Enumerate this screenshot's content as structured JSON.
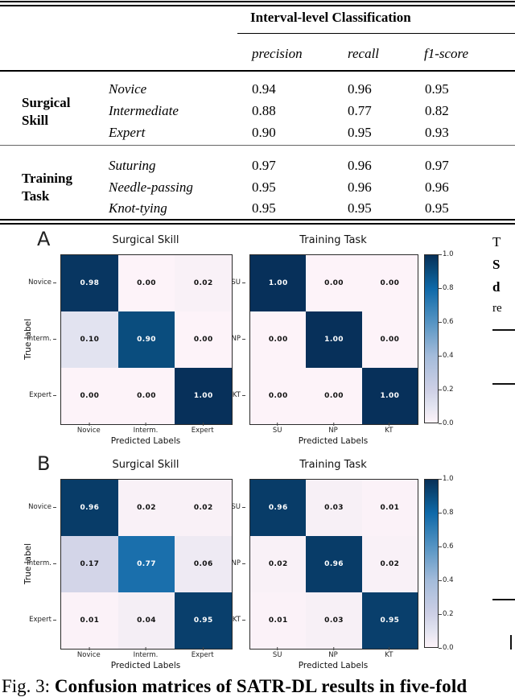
{
  "table": {
    "group_header": "Interval-level Classification",
    "col_headers": [
      "precision",
      "recall",
      "f1-score"
    ],
    "groups": [
      {
        "label": "Surgical Skill",
        "rows": [
          {
            "name": "Novice",
            "values": [
              "0.94",
              "0.96",
              "0.95"
            ]
          },
          {
            "name": "Intermediate",
            "values": [
              "0.88",
              "0.77",
              "0.82"
            ]
          },
          {
            "name": "Expert",
            "values": [
              "0.90",
              "0.95",
              "0.93"
            ]
          }
        ]
      },
      {
        "label": "Training Task",
        "rows": [
          {
            "name": "Suturing",
            "values": [
              "0.97",
              "0.96",
              "0.97"
            ]
          },
          {
            "name": "Needle-passing",
            "values": [
              "0.95",
              "0.96",
              "0.96"
            ]
          },
          {
            "name": "Knot-tying",
            "values": [
              "0.95",
              "0.95",
              "0.95"
            ]
          }
        ]
      }
    ]
  },
  "figure": {
    "colorbar_ticks": [
      "1.0",
      "0.8",
      "0.6",
      "0.4",
      "0.2",
      "0.0"
    ],
    "colors": {
      "cmap_max": "#073058",
      "cmap_min": "#fdf3f9"
    },
    "panels": [
      {
        "label": "A",
        "matrices": [
          {
            "title": "Surgical Skill",
            "xlabel": "Predicted Labels",
            "ylabel": "True label",
            "xticks": [
              "Novice",
              "Interm.",
              "Expert"
            ],
            "yticks": [
              "Novice",
              "Interm.",
              "Expert"
            ],
            "cells": [
              [
                "0.98",
                "0.00",
                "0.02"
              ],
              [
                "0.10",
                "0.90",
                "0.00"
              ],
              [
                "0.00",
                "0.00",
                "1.00"
              ]
            ]
          },
          {
            "title": "Training Task",
            "xlabel": "Predicted Labels",
            "xticks": [
              "SU",
              "NP",
              "KT"
            ],
            "yticks": [
              "SU",
              "NP",
              "KT"
            ],
            "cells": [
              [
                "1.00",
                "0.00",
                "0.00"
              ],
              [
                "0.00",
                "1.00",
                "0.00"
              ],
              [
                "0.00",
                "0.00",
                "1.00"
              ]
            ]
          }
        ]
      },
      {
        "label": "B",
        "matrices": [
          {
            "title": "Surgical Skill",
            "xlabel": "Predicted Labels",
            "ylabel": "True label",
            "xticks": [
              "Novice",
              "Interm.",
              "Expert"
            ],
            "yticks": [
              "Novice",
              "Interm.",
              "Expert"
            ],
            "cells": [
              [
                "0.96",
                "0.02",
                "0.02"
              ],
              [
                "0.17",
                "0.77",
                "0.06"
              ],
              [
                "0.01",
                "0.04",
                "0.95"
              ]
            ]
          },
          {
            "title": "Training Task",
            "xlabel": "Predicted Labels",
            "xticks": [
              "SU",
              "NP",
              "KT"
            ],
            "yticks": [
              "SU",
              "NP",
              "KT"
            ],
            "cells": [
              [
                "0.96",
                "0.03",
                "0.01"
              ],
              [
                "0.02",
                "0.96",
                "0.02"
              ],
              [
                "0.01",
                "0.03",
                "0.95"
              ]
            ]
          }
        ]
      }
    ]
  },
  "side_column": {
    "fragments": [
      "T",
      "S",
      "d",
      "re"
    ]
  },
  "caption": {
    "prefix": "Fig. 3: ",
    "bold": "Confusion matrices of SATR-DL results in five-fold"
  },
  "chart_data": [
    {
      "type": "heatmap",
      "panel": "A",
      "title": "Surgical Skill",
      "xlabel": "Predicted Labels",
      "ylabel": "True label",
      "x": [
        "Novice",
        "Interm.",
        "Expert"
      ],
      "y": [
        "Novice",
        "Interm.",
        "Expert"
      ],
      "values": [
        [
          0.98,
          0.0,
          0.02
        ],
        [
          0.1,
          0.9,
          0.0
        ],
        [
          0.0,
          0.0,
          1.0
        ]
      ],
      "vmin": 0.0,
      "vmax": 1.0,
      "colorbar_ticks": [
        1.0,
        0.8,
        0.6,
        0.4,
        0.2,
        0.0
      ]
    },
    {
      "type": "heatmap",
      "panel": "A",
      "title": "Training Task",
      "xlabel": "Predicted Labels",
      "x": [
        "SU",
        "NP",
        "KT"
      ],
      "y": [
        "SU",
        "NP",
        "KT"
      ],
      "values": [
        [
          1.0,
          0.0,
          0.0
        ],
        [
          0.0,
          1.0,
          0.0
        ],
        [
          0.0,
          0.0,
          1.0
        ]
      ],
      "vmin": 0.0,
      "vmax": 1.0,
      "colorbar_ticks": [
        1.0,
        0.8,
        0.6,
        0.4,
        0.2,
        0.0
      ]
    },
    {
      "type": "heatmap",
      "panel": "B",
      "title": "Surgical Skill",
      "xlabel": "Predicted Labels",
      "ylabel": "True label",
      "x": [
        "Novice",
        "Interm.",
        "Expert"
      ],
      "y": [
        "Novice",
        "Interm.",
        "Expert"
      ],
      "values": [
        [
          0.96,
          0.02,
          0.02
        ],
        [
          0.17,
          0.77,
          0.06
        ],
        [
          0.01,
          0.04,
          0.95
        ]
      ],
      "vmin": 0.0,
      "vmax": 1.0,
      "colorbar_ticks": [
        1.0,
        0.8,
        0.6,
        0.4,
        0.2,
        0.0
      ]
    },
    {
      "type": "heatmap",
      "panel": "B",
      "title": "Training Task",
      "xlabel": "Predicted Labels",
      "x": [
        "SU",
        "NP",
        "KT"
      ],
      "y": [
        "SU",
        "NP",
        "KT"
      ],
      "values": [
        [
          0.96,
          0.03,
          0.01
        ],
        [
          0.02,
          0.96,
          0.02
        ],
        [
          0.01,
          0.03,
          0.95
        ]
      ],
      "vmin": 0.0,
      "vmax": 1.0,
      "colorbar_ticks": [
        1.0,
        0.8,
        0.6,
        0.4,
        0.2,
        0.0
      ]
    }
  ]
}
